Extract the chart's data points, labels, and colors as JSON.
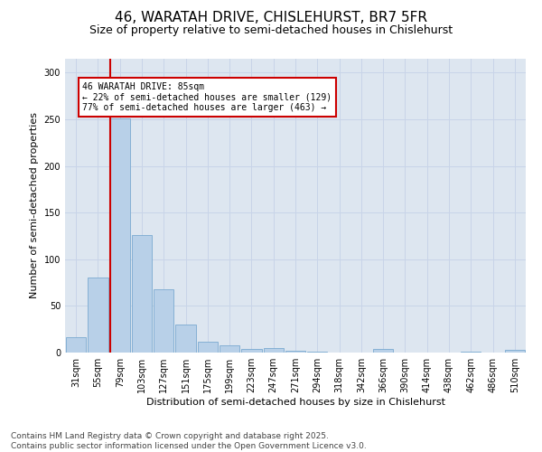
{
  "title": "46, WARATAH DRIVE, CHISLEHURST, BR7 5FR",
  "subtitle": "Size of property relative to semi-detached houses in Chislehurst",
  "xlabel": "Distribution of semi-detached houses by size in Chislehurst",
  "ylabel": "Number of semi-detached properties",
  "bar_labels": [
    "31sqm",
    "55sqm",
    "79sqm",
    "103sqm",
    "127sqm",
    "151sqm",
    "175sqm",
    "199sqm",
    "223sqm",
    "247sqm",
    "271sqm",
    "294sqm",
    "318sqm",
    "342sqm",
    "366sqm",
    "390sqm",
    "414sqm",
    "438sqm",
    "462sqm",
    "486sqm",
    "510sqm"
  ],
  "values": [
    16,
    80,
    251,
    126,
    68,
    30,
    12,
    8,
    4,
    5,
    2,
    1,
    0,
    0,
    4,
    0,
    0,
    0,
    1,
    0,
    3
  ],
  "bar_color": "#b8d0e8",
  "bar_edge_color": "#7aaad0",
  "red_line_index": 2,
  "red_line_color": "#cc0000",
  "annotation_title": "46 WARATAH DRIVE: 85sqm",
  "annotation_line1": "← 22% of semi-detached houses are smaller (129)",
  "annotation_line2": "77% of semi-detached houses are larger (463) →",
  "annotation_box_color": "#ffffff",
  "annotation_box_edge": "#cc0000",
  "ylim": [
    0,
    315
  ],
  "yticks": [
    0,
    50,
    100,
    150,
    200,
    250,
    300
  ],
  "grid_color": "#c8d4e8",
  "bg_color": "#dde6f0",
  "footer1": "Contains HM Land Registry data © Crown copyright and database right 2025.",
  "footer2": "Contains public sector information licensed under the Open Government Licence v3.0.",
  "title_fontsize": 11,
  "subtitle_fontsize": 9,
  "axis_label_fontsize": 8,
  "tick_fontsize": 7,
  "annotation_fontsize": 7,
  "footer_fontsize": 6.5
}
